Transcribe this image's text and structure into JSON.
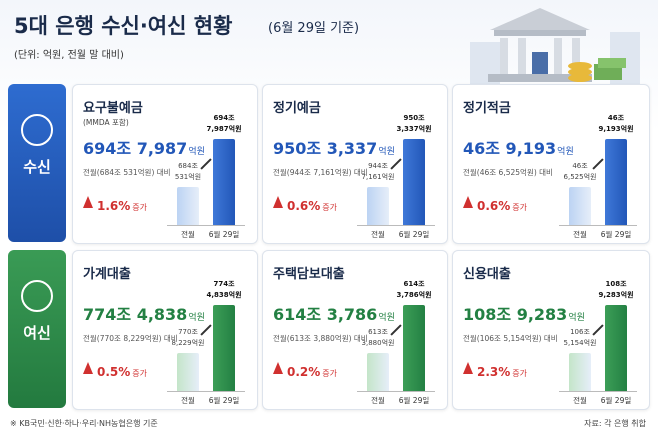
{
  "header": {
    "title": "5대 은행 수신·여신 현황",
    "date": "(6월 29일 기준)",
    "unit": "(단위: 억원, 전월 말 대비)"
  },
  "sections": [
    {
      "label": "수신",
      "cards": [
        {
          "title": "요구불예금",
          "note": "(MMDA 포함)",
          "amount": "694조 7,987",
          "unit": "억원",
          "prev": "전월(684조 531억원) 대비",
          "change": "1.6%",
          "change_word": "증가",
          "prev_bar_label": [
            "684조",
            "531억원"
          ],
          "curr_bar_label": [
            "694조",
            "7,987억원"
          ],
          "x_labels": [
            "전월",
            "6월 29일"
          ]
        },
        {
          "title": "정기예금",
          "amount": "950조 3,337",
          "unit": "억원",
          "prev": "전월(944조 7,161억원) 대비",
          "change": "0.6%",
          "change_word": "증가",
          "prev_bar_label": [
            "944조",
            "7,161억원"
          ],
          "curr_bar_label": [
            "950조",
            "3,337억원"
          ],
          "x_labels": [
            "전월",
            "6월 29일"
          ]
        },
        {
          "title": "정기적금",
          "amount": "46조 9,193",
          "unit": "억원",
          "prev": "전월(46조 6,525억원) 대비",
          "change": "0.6%",
          "change_word": "증가",
          "prev_bar_label": [
            "46조",
            "6,525억원"
          ],
          "curr_bar_label": [
            "46조",
            "9,193억원"
          ],
          "x_labels": [
            "전월",
            "6월 29일"
          ]
        }
      ]
    },
    {
      "label": "여신",
      "cards": [
        {
          "title": "가계대출",
          "amount": "774조 4,838",
          "unit": "억원",
          "prev": "전월(770조 8,229억원) 대비",
          "change": "0.5%",
          "change_word": "증가",
          "prev_bar_label": [
            "770조",
            "8,229억원"
          ],
          "curr_bar_label": [
            "774조",
            "4,838억원"
          ],
          "x_labels": [
            "전월",
            "6월 29일"
          ]
        },
        {
          "title": "주택담보대출",
          "amount": "614조 3,786",
          "unit": "억원",
          "prev": "전월(613조 3,880억원) 대비",
          "change": "0.2%",
          "change_word": "증가",
          "prev_bar_label": [
            "613조",
            "3,880억원"
          ],
          "curr_bar_label": [
            "614조",
            "3,786억원"
          ],
          "x_labels": [
            "전월",
            "6월 29일"
          ]
        },
        {
          "title": "신용대출",
          "amount": "108조 9,283",
          "unit": "억원",
          "prev": "전월(106조 5,154억원) 대비",
          "change": "2.3%",
          "change_word": "증가",
          "prev_bar_label": [
            "106조",
            "5,154억원"
          ],
          "curr_bar_label": [
            "108조",
            "9,283억원"
          ],
          "x_labels": [
            "전월",
            "6월 29일"
          ]
        }
      ]
    }
  ],
  "footer": {
    "note": "※ KB국민·신한·하나·우리·NH농협은행 기준",
    "source": "자료: 각 은행 취합"
  }
}
